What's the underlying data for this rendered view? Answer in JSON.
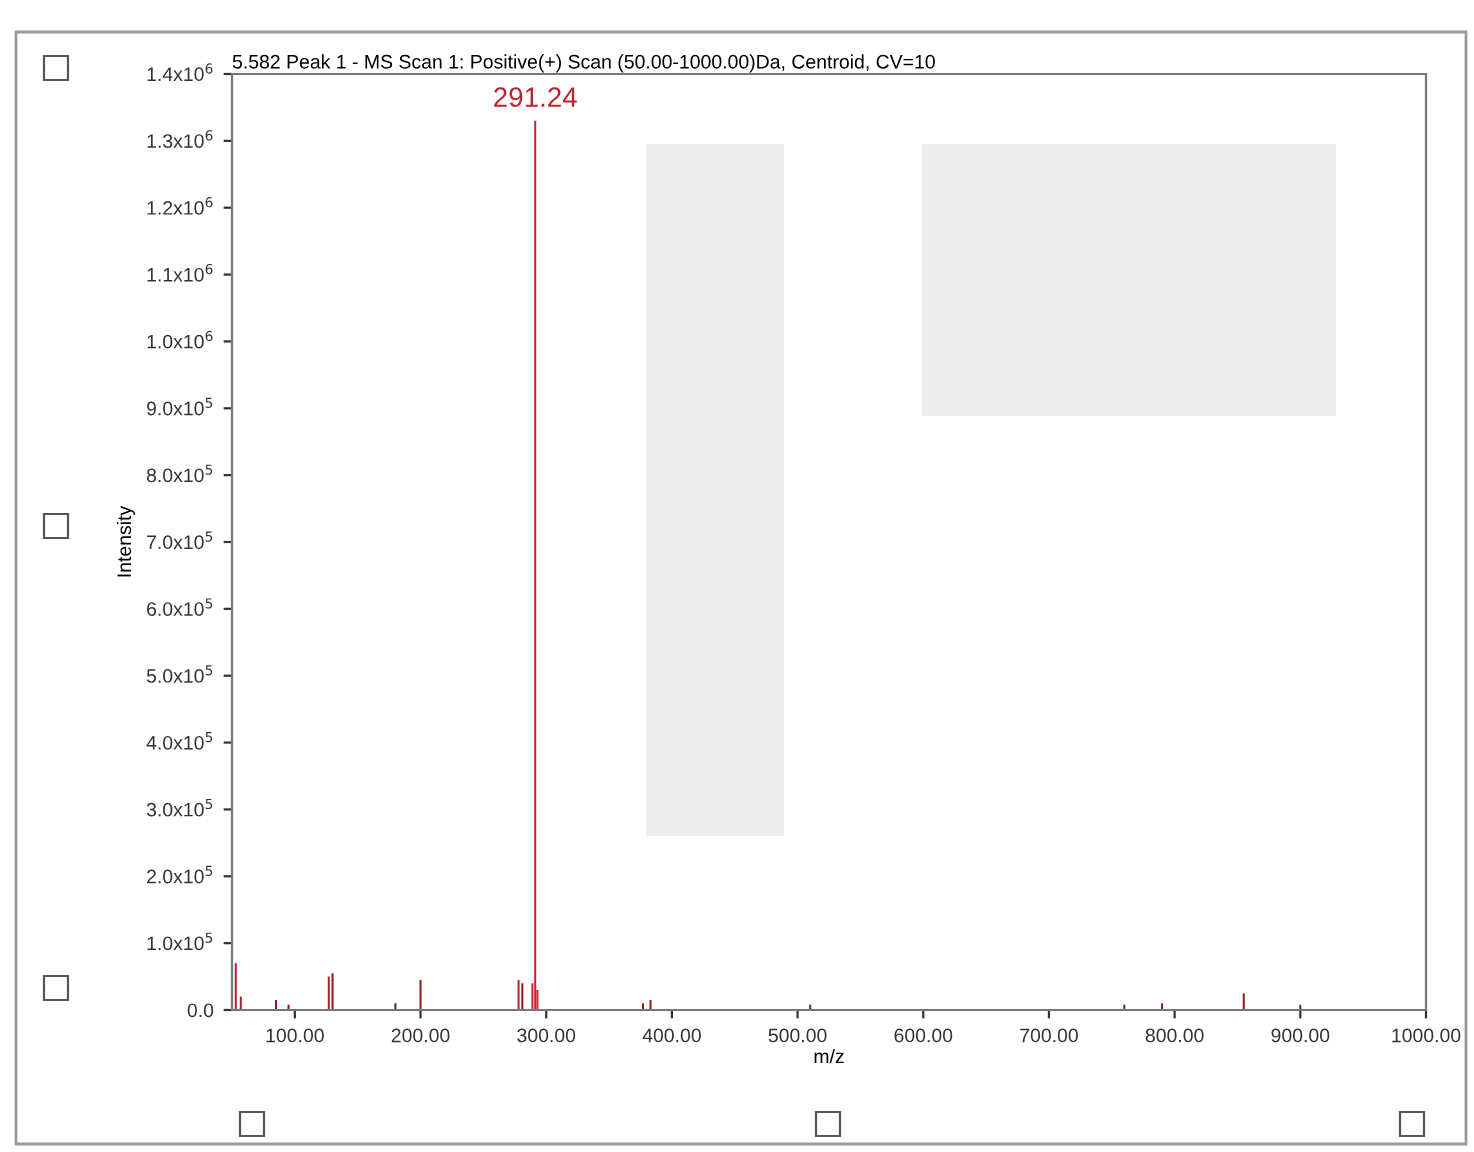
{
  "chart_data": {
    "type": "bar",
    "title": "5.582 Peak 1 - MS Scan 1: Positive(+) Scan (50.00-1000.00)Da, Centroid, CV=10",
    "xlabel": "m/z",
    "ylabel": "Intensity",
    "x": [
      53,
      57,
      85,
      95,
      127,
      130,
      180,
      200,
      278,
      281,
      289,
      291.24,
      293,
      377,
      383,
      510,
      760,
      790,
      855,
      900
    ],
    "values": [
      70000,
      20000,
      15000,
      8000,
      50000,
      55000,
      10000,
      45000,
      45000,
      40000,
      40000,
      1330000,
      30000,
      10000,
      15000,
      8000,
      8000,
      10000,
      25000,
      8000
    ],
    "colors": [
      "#b02030",
      "#b02030",
      "#8b1a1a",
      "#8b1a1a",
      "#b02030",
      "#8b1a1a",
      "#333333",
      "#8b1a1a",
      "#b02030",
      "#8b1a1a",
      "#d02030",
      "#d02030",
      "#d02030",
      "#8b1a1a",
      "#8b1a1a",
      "#8b1a1a",
      "#8b1a1a",
      "#8b1a1a",
      "#8b1a1a",
      "#8b1a1a"
    ],
    "annotations": [
      {
        "text": "291.24",
        "x": 291.24,
        "y": 1330000
      }
    ],
    "xlim": [
      50,
      1000
    ],
    "xticks": [
      {
        "value": 100,
        "label": "100.00"
      },
      {
        "value": 200,
        "label": "200.00"
      },
      {
        "value": 300,
        "label": "300.00"
      },
      {
        "value": 400,
        "label": "400.00"
      },
      {
        "value": 500,
        "label": "500.00"
      },
      {
        "value": 600,
        "label": "600.00"
      },
      {
        "value": 700,
        "label": "700.00"
      },
      {
        "value": 800,
        "label": "800.00"
      },
      {
        "value": 900,
        "label": "900.00"
      },
      {
        "value": 1000,
        "label": "1000.00"
      }
    ],
    "ylim": [
      0,
      1400000
    ],
    "yticks": [
      {
        "value": 0,
        "label": "0.0"
      },
      {
        "value": 100000,
        "label": "1.0x10$^{5}$"
      },
      {
        "value": 200000,
        "label": "2.0x10$^{5}$"
      },
      {
        "value": 300000,
        "label": "3.0x10$^{5}$"
      },
      {
        "value": 400000,
        "label": "4.0x10$^{5}$"
      },
      {
        "value": 500000,
        "label": "5.0x10$^{5}$"
      },
      {
        "value": 600000,
        "label": "6.0x10$^{5}$"
      },
      {
        "value": 700000,
        "label": "7.0x10$^{5}$"
      },
      {
        "value": 800000,
        "label": "8.0x10$^{5}$"
      },
      {
        "value": 900000,
        "label": "9.0x10$^{5}$"
      },
      {
        "value": 1000000,
        "label": "1.0x10$^{6}$"
      },
      {
        "value": 1100000,
        "label": "1.1x10$^{6}$"
      },
      {
        "value": 1200000,
        "label": "1.2x10$^{6}$"
      },
      {
        "value": 1300000,
        "label": "1.3x10$^{6}$"
      },
      {
        "value": 1400000,
        "label": "1.4x10$^{6}$"
      }
    ],
    "grid": false
  }
}
